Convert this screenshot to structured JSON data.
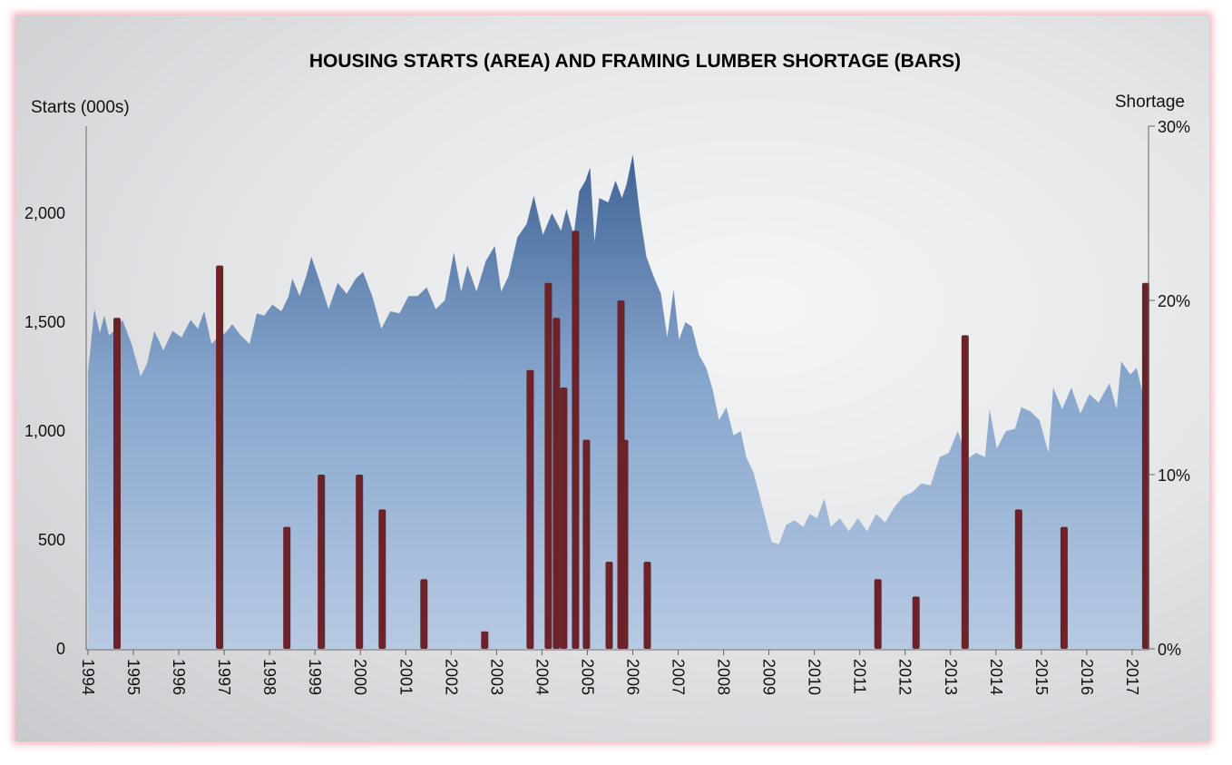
{
  "chart_data": {
    "type": "area+bar",
    "title": "HOUSING STARTS (AREA) AND  FRAMING LUMBER SHORTAGE (BARS)",
    "ylabel_left": "Starts  (000s)",
    "ylabel_right": "Shortage",
    "ylim_left": [
      0,
      2400
    ],
    "ylim_right": [
      0,
      30
    ],
    "yticks_left": [
      "0",
      "500",
      "1,000",
      "1,500",
      "2,000"
    ],
    "yticks_left_values": [
      0,
      500,
      1000,
      1500,
      2000
    ],
    "yticks_right": [
      "0%",
      "10%",
      "20%",
      "30%"
    ],
    "yticks_right_values": [
      0,
      10,
      20,
      30
    ],
    "xticks": [
      "1994",
      "1995",
      "1996",
      "1997",
      "1998",
      "1999",
      "2000",
      "2001",
      "2002",
      "2003",
      "2004",
      "2005",
      "2006",
      "2007",
      "2008",
      "2009",
      "2010",
      "2011",
      "2012",
      "2013",
      "2014",
      "2015",
      "2016",
      "2017"
    ],
    "xlim": [
      1994,
      2017.4
    ],
    "grid": false,
    "series": [
      {
        "name": "Housing starts",
        "type": "area",
        "color": "#4a6e9f",
        "x": [
          1994.0,
          1994.14,
          1994.26,
          1994.36,
          1994.46,
          1994.58,
          1994.76,
          1994.96,
          1995.16,
          1995.3,
          1995.46,
          1995.66,
          1995.86,
          1996.06,
          1996.26,
          1996.42,
          1996.56,
          1996.72,
          1996.86,
          1997.02,
          1997.18,
          1997.36,
          1997.56,
          1997.72,
          1997.88,
          1998.06,
          1998.26,
          1998.42,
          1998.5,
          1998.66,
          1998.82,
          1998.92,
          1999.1,
          1999.3,
          1999.5,
          1999.7,
          1999.9,
          2000.06,
          2000.26,
          2000.46,
          2000.66,
          2000.86,
          2001.06,
          2001.26,
          2001.46,
          2001.66,
          2001.86,
          2002.06,
          2002.22,
          2002.36,
          2002.56,
          2002.76,
          2002.96,
          2003.1,
          2003.26,
          2003.46,
          2003.66,
          2003.82,
          2004.02,
          2004.22,
          2004.42,
          2004.54,
          2004.7,
          2004.82,
          2004.96,
          2005.06,
          2005.16,
          2005.26,
          2005.46,
          2005.62,
          2005.76,
          2005.86,
          2006.0,
          2006.16,
          2006.3,
          2006.46,
          2006.62,
          2006.76,
          2006.9,
          2007.02,
          2007.16,
          2007.3,
          2007.46,
          2007.62,
          2007.76,
          2007.9,
          2008.06,
          2008.22,
          2008.38,
          2008.5,
          2008.66,
          2008.86,
          2009.06,
          2009.22,
          2009.38,
          2009.56,
          2009.76,
          2009.9,
          2010.06,
          2010.22,
          2010.36,
          2010.56,
          2010.76,
          2010.96,
          2011.16,
          2011.36,
          2011.56,
          2011.76,
          2011.96,
          2012.16,
          2012.36,
          2012.56,
          2012.76,
          2012.96,
          2013.16,
          2013.36,
          2013.56,
          2013.76,
          2013.86,
          2014.02,
          2014.22,
          2014.42,
          2014.56,
          2014.76,
          2014.96,
          2015.16,
          2015.26,
          2015.46,
          2015.66,
          2015.86,
          2016.06,
          2016.26,
          2016.5,
          2016.66,
          2016.76,
          2016.96,
          2017.1,
          2017.26
        ],
        "values": [
          1270,
          1560,
          1450,
          1530,
          1440,
          1460,
          1510,
          1400,
          1250,
          1310,
          1460,
          1370,
          1460,
          1430,
          1510,
          1470,
          1550,
          1400,
          1430,
          1450,
          1490,
          1440,
          1400,
          1540,
          1530,
          1580,
          1550,
          1620,
          1700,
          1620,
          1720,
          1800,
          1690,
          1560,
          1680,
          1630,
          1700,
          1730,
          1620,
          1470,
          1550,
          1540,
          1620,
          1620,
          1660,
          1560,
          1600,
          1820,
          1640,
          1760,
          1640,
          1780,
          1850,
          1640,
          1710,
          1890,
          1950,
          2080,
          1900,
          2000,
          1920,
          2020,
          1900,
          2100,
          2150,
          2210,
          1870,
          2070,
          2050,
          2150,
          2070,
          2130,
          2270,
          1990,
          1800,
          1710,
          1630,
          1430,
          1650,
          1420,
          1500,
          1480,
          1350,
          1290,
          1190,
          1050,
          1110,
          980,
          1000,
          880,
          810,
          650,
          490,
          480,
          570,
          590,
          560,
          620,
          600,
          690,
          560,
          600,
          540,
          600,
          540,
          620,
          580,
          650,
          700,
          720,
          760,
          750,
          880,
          900,
          1000,
          870,
          900,
          880,
          1100,
          920,
          1000,
          1010,
          1110,
          1090,
          1050,
          900,
          1200,
          1100,
          1200,
          1080,
          1170,
          1130,
          1220,
          1100,
          1320,
          1260,
          1290,
          1150
        ]
      },
      {
        "name": "Framing lumber shortage",
        "type": "bar",
        "color": "#6b2228",
        "x": [
          1994.64,
          1996.9,
          1998.38,
          1999.14,
          1999.98,
          2000.48,
          2001.4,
          2002.74,
          2003.74,
          2004.14,
          2004.32,
          2004.48,
          2004.74,
          2004.98,
          2005.48,
          2005.74,
          2005.82,
          2006.32,
          2011.4,
          2012.24,
          2013.32,
          2014.5,
          2015.5,
          2017.3
        ],
        "values": [
          19,
          22,
          7,
          10,
          10,
          8,
          4,
          1,
          16,
          21,
          19,
          15,
          24,
          12,
          5,
          20,
          12,
          5,
          4,
          3,
          18,
          8,
          7,
          21
        ]
      }
    ]
  }
}
